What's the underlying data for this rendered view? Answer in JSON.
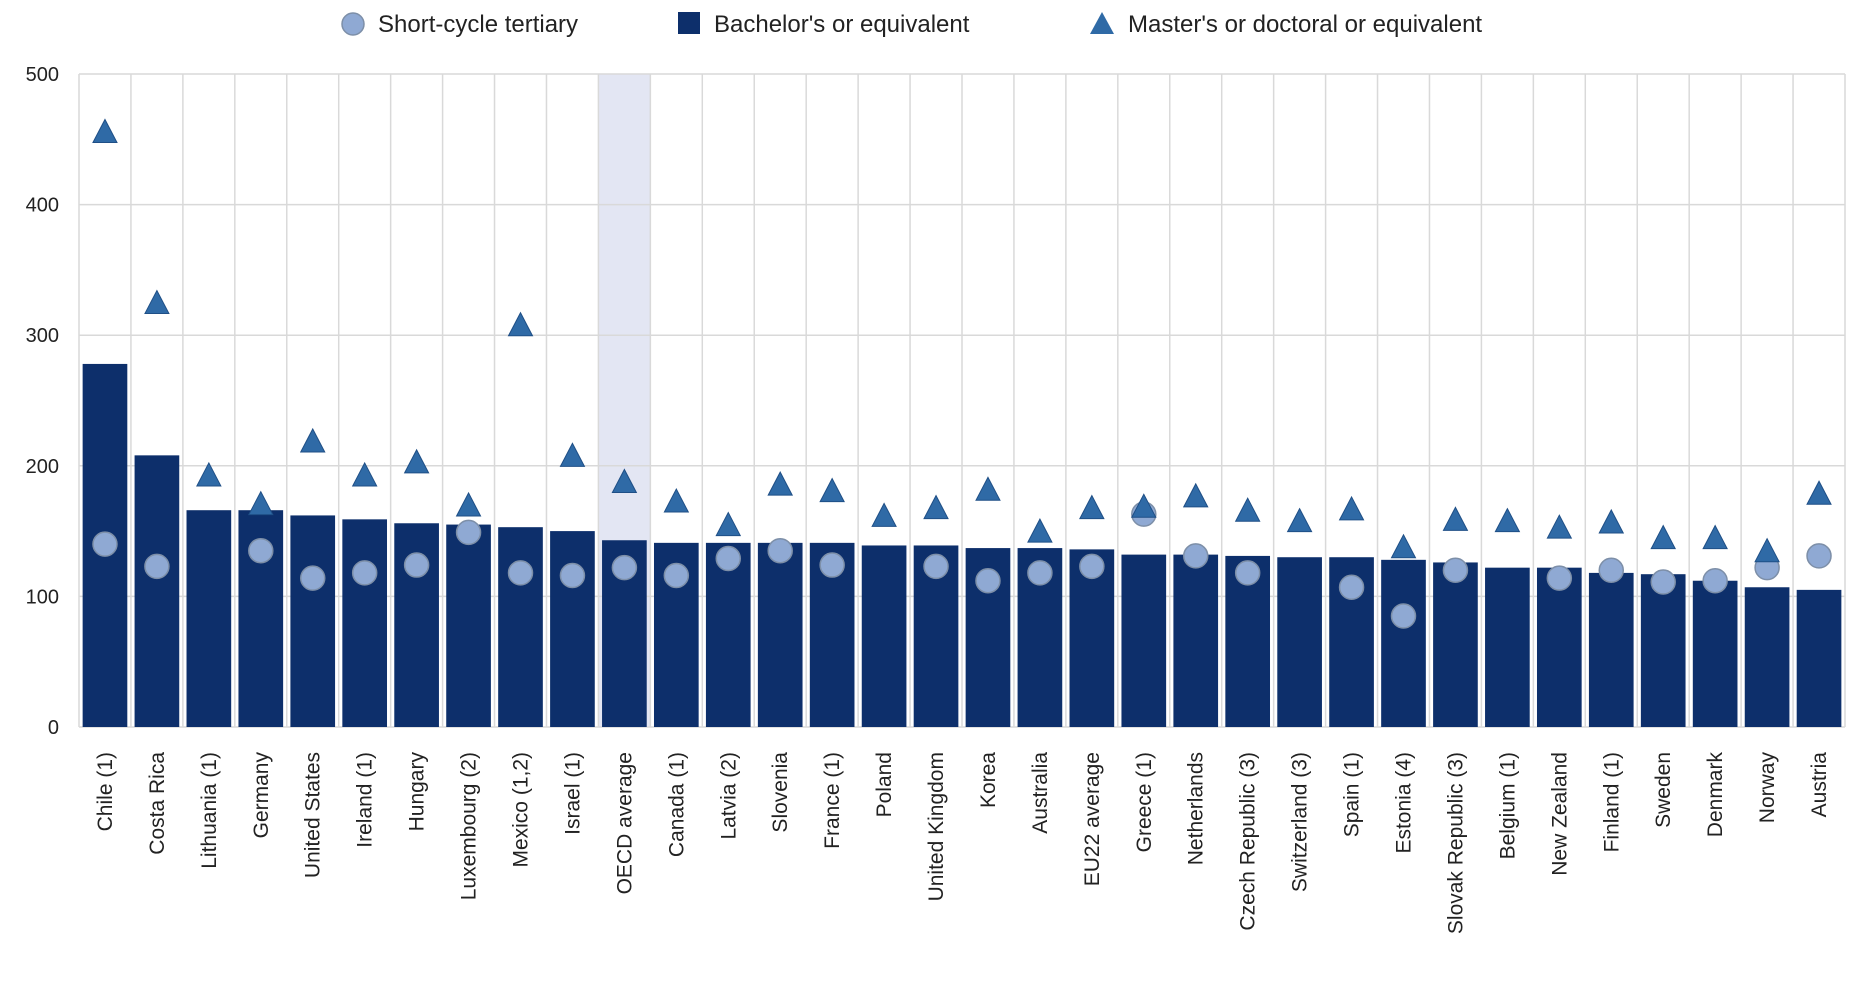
{
  "chart_data": {
    "type": "bar",
    "categories": [
      "Chile (1)",
      "Costa Rica",
      "Lithuania (1)",
      "Germany",
      "United States",
      "Ireland (1)",
      "Hungary",
      "Luxembourg (2)",
      "Mexico (1,2)",
      "Israel (1)",
      "OECD average",
      "Canada (1)",
      "Latvia (2)",
      "Slovenia",
      "France (1)",
      "Poland",
      "United Kingdom",
      "Korea",
      "Australia",
      "EU22 average",
      "Greece (1)",
      "Netherlands",
      "Czech Republic (3)",
      "Switzerland (3)",
      "Spain (1)",
      "Estonia (4)",
      "Slovak Republic (3)",
      "Belgium (1)",
      "New Zealand",
      "Finland (1)",
      "Sweden",
      "Denmark",
      "Norway",
      "Austria"
    ],
    "highlight_category": "OECD average",
    "series": [
      {
        "name": "Bachelor's or equivalent",
        "marker": "bar",
        "color": "#0d2f6b",
        "values": [
          278,
          208,
          166,
          166,
          162,
          159,
          156,
          155,
          153,
          150,
          143,
          141,
          141,
          141,
          141,
          139,
          139,
          137,
          137,
          136,
          132,
          132,
          131,
          130,
          130,
          128,
          126,
          122,
          122,
          118,
          117,
          112,
          107,
          105
        ]
      },
      {
        "name": "Short-cycle tertiary",
        "marker": "circle",
        "color": "#8fa9d3",
        "values": [
          140,
          123,
          null,
          135,
          114,
          118,
          124,
          149,
          118,
          116,
          122,
          116,
          129,
          135,
          124,
          null,
          123,
          112,
          118,
          123,
          163,
          131,
          118,
          null,
          107,
          85,
          120,
          null,
          114,
          120,
          111,
          112,
          122,
          131
        ]
      },
      {
        "name": "Master's or doctoral or equivalent",
        "marker": "triangle",
        "color": "#2f6aa6",
        "values": [
          456,
          325,
          193,
          171,
          219,
          193,
          203,
          170,
          308,
          208,
          188,
          173,
          155,
          186,
          181,
          162,
          168,
          182,
          150,
          168,
          169,
          177,
          166,
          158,
          167,
          138,
          159,
          158,
          153,
          157,
          145,
          145,
          135,
          179
        ]
      }
    ],
    "ylim": [
      0,
      500
    ],
    "yticks": [
      "0",
      "100",
      "200",
      "300",
      "400",
      "500"
    ],
    "grid": true,
    "legend_position": "top-center"
  }
}
